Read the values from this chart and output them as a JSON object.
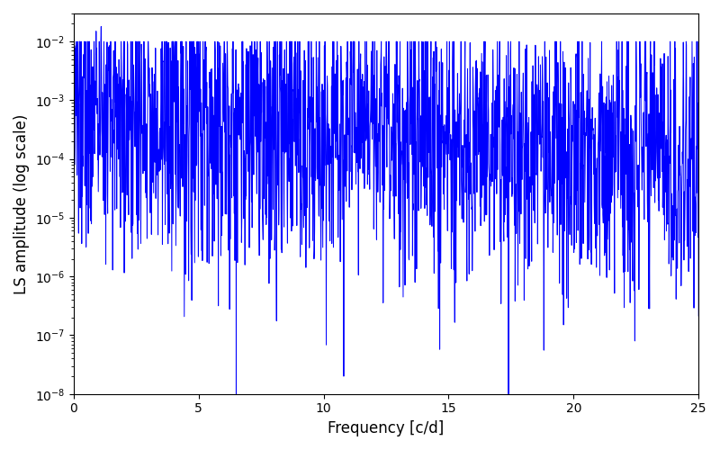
{
  "title": "",
  "xlabel": "Frequency [c/d]",
  "ylabel": "LS amplitude (log scale)",
  "xlim": [
    0,
    25
  ],
  "ylim": [
    1e-08,
    0.03
  ],
  "line_color": "#0000ff",
  "line_width": 0.7,
  "figsize": [
    8.0,
    5.0
  ],
  "dpi": 100,
  "freq_min": 0.0,
  "freq_max": 25.0,
  "n_points": 2000,
  "seed": 137
}
